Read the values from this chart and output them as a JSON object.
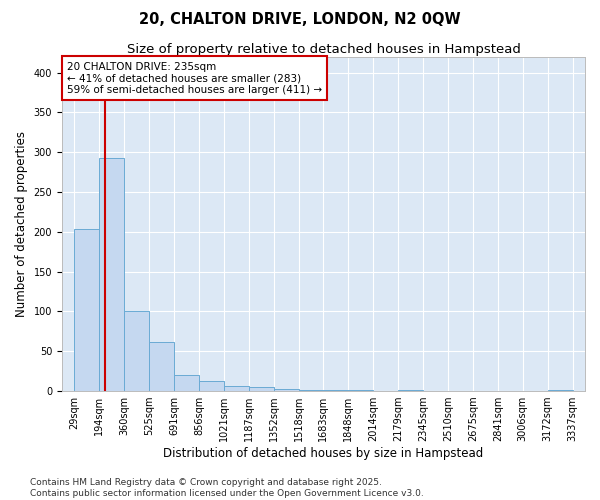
{
  "title_line1": "20, CHALTON DRIVE, LONDON, N2 0QW",
  "title_line2": "Size of property relative to detached houses in Hampstead",
  "xlabel": "Distribution of detached houses by size in Hampstead",
  "ylabel": "Number of detached properties",
  "bar_edges": [
    29,
    194,
    360,
    525,
    691,
    856,
    1021,
    1187,
    1352,
    1518,
    1683,
    1848,
    2014,
    2179,
    2345,
    2510,
    2675,
    2841,
    3006,
    3172,
    3337
  ],
  "bar_heights": [
    203,
    293,
    101,
    61,
    20,
    12,
    6,
    5,
    3,
    1,
    1,
    1,
    0,
    1,
    0,
    0,
    0,
    0,
    0,
    1
  ],
  "bar_color": "#c5d8f0",
  "bar_edge_color": "#6aaad4",
  "redline_x": 235,
  "annotation_text": "20 CHALTON DRIVE: 235sqm\n← 41% of detached houses are smaller (283)\n59% of semi-detached houses are larger (411) →",
  "annotation_box_color": "#ffffff",
  "annotation_box_edge": "#cc0000",
  "redline_color": "#cc0000",
  "ylim": [
    0,
    420
  ],
  "yticks": [
    0,
    50,
    100,
    150,
    200,
    250,
    300,
    350,
    400
  ],
  "plot_bg_color": "#dce8f5",
  "fig_bg_color": "#ffffff",
  "grid_color": "#ffffff",
  "footer": "Contains HM Land Registry data © Crown copyright and database right 2025.\nContains public sector information licensed under the Open Government Licence v3.0.",
  "title_fontsize": 10.5,
  "subtitle_fontsize": 9.5,
  "axis_label_fontsize": 8.5,
  "tick_label_fontsize": 7,
  "annotation_fontsize": 7.5,
  "footer_fontsize": 6.5
}
